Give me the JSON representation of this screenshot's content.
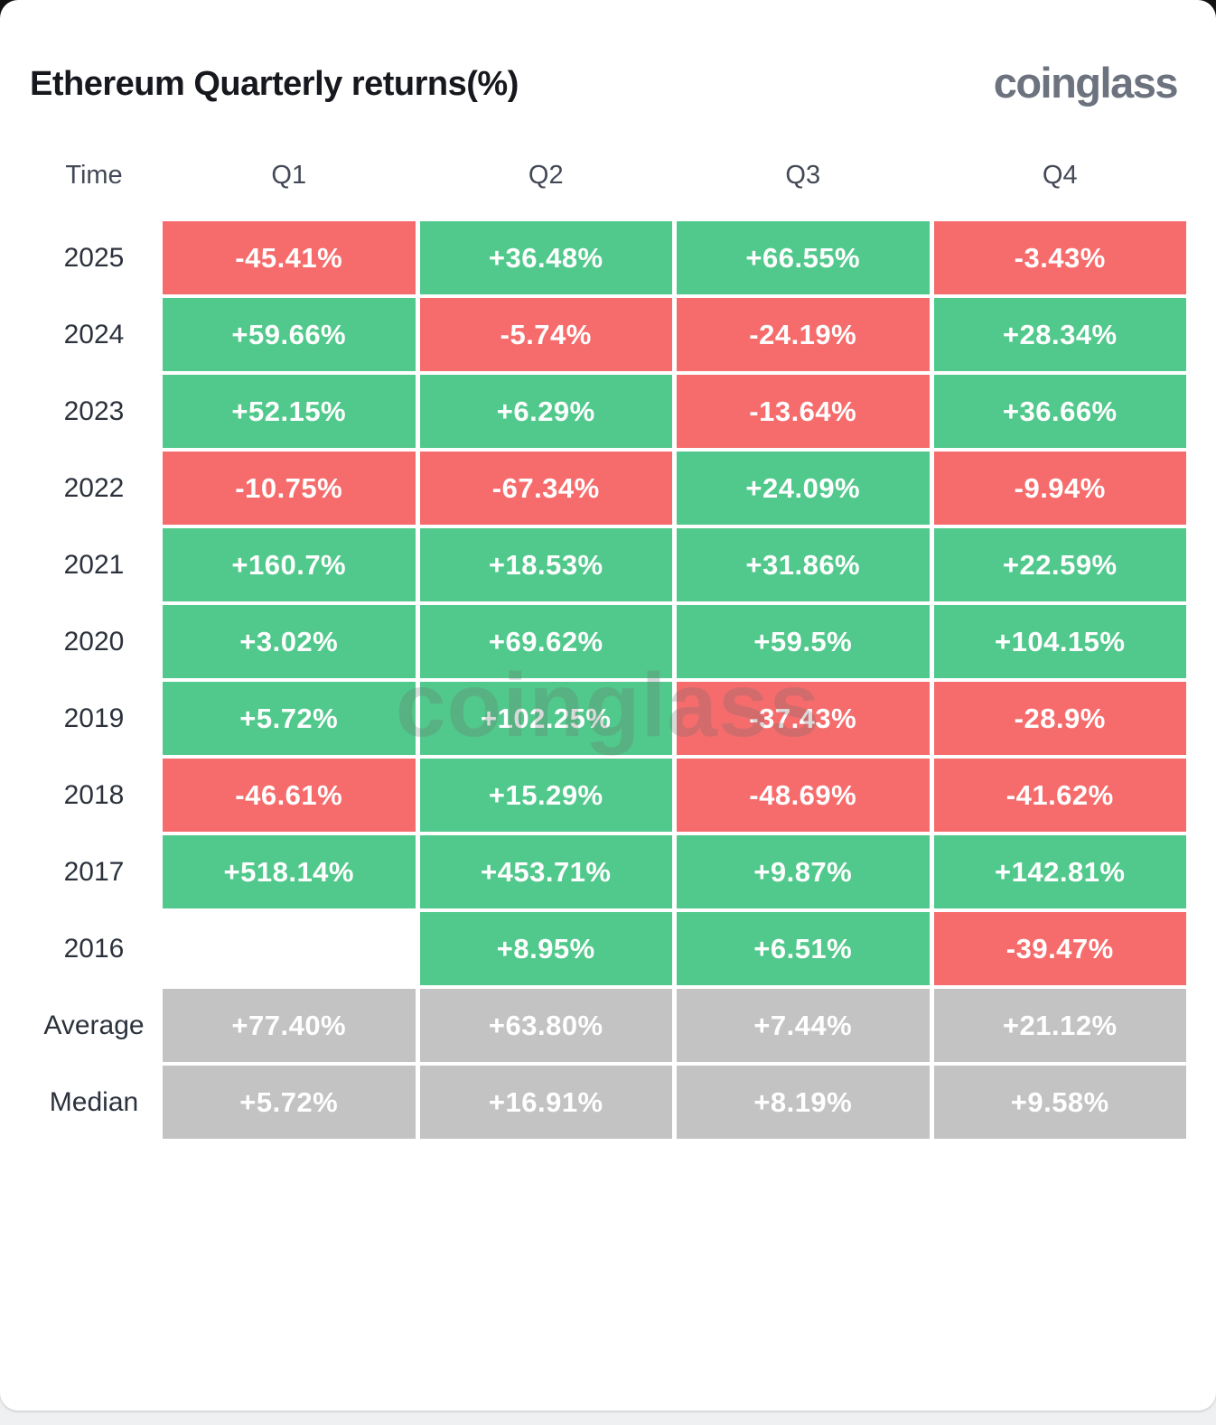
{
  "header": {
    "title": "Ethereum Quarterly returns(%)",
    "logo": "coinglass"
  },
  "watermark": "coinglass",
  "table": {
    "columns": [
      "Time",
      "Q1",
      "Q2",
      "Q3",
      "Q4"
    ],
    "colors": {
      "positive": "#52C98C",
      "negative": "#F66C6C",
      "summary": "#C3C3C3",
      "title_text": "#16181d",
      "header_text": "#434956",
      "year_text": "#2c323c",
      "logo_text": "#6c737e"
    },
    "rows": [
      {
        "label": "2025",
        "kind": "data",
        "cells": [
          "-45.41%",
          "+36.48%",
          "+66.55%",
          "-3.43%"
        ]
      },
      {
        "label": "2024",
        "kind": "data",
        "cells": [
          "+59.66%",
          "-5.74%",
          "-24.19%",
          "+28.34%"
        ]
      },
      {
        "label": "2023",
        "kind": "data",
        "cells": [
          "+52.15%",
          "+6.29%",
          "-13.64%",
          "+36.66%"
        ]
      },
      {
        "label": "2022",
        "kind": "data",
        "cells": [
          "-10.75%",
          "-67.34%",
          "+24.09%",
          "-9.94%"
        ]
      },
      {
        "label": "2021",
        "kind": "data",
        "cells": [
          "+160.7%",
          "+18.53%",
          "+31.86%",
          "+22.59%"
        ]
      },
      {
        "label": "2020",
        "kind": "data",
        "cells": [
          "+3.02%",
          "+69.62%",
          "+59.5%",
          "+104.15%"
        ]
      },
      {
        "label": "2019",
        "kind": "data",
        "cells": [
          "+5.72%",
          "+102.25%",
          "-37.43%",
          "-28.9%"
        ]
      },
      {
        "label": "2018",
        "kind": "data",
        "cells": [
          "-46.61%",
          "+15.29%",
          "-48.69%",
          "-41.62%"
        ]
      },
      {
        "label": "2017",
        "kind": "data",
        "cells": [
          "+518.14%",
          "+453.71%",
          "+9.87%",
          "+142.81%"
        ]
      },
      {
        "label": "2016",
        "kind": "data",
        "cells": [
          null,
          "+8.95%",
          "+6.51%",
          "-39.47%"
        ]
      },
      {
        "label": "Average",
        "kind": "summary",
        "cells": [
          "+77.40%",
          "+63.80%",
          "+7.44%",
          "+21.12%"
        ]
      },
      {
        "label": "Median",
        "kind": "summary",
        "cells": [
          "+5.72%",
          "+16.91%",
          "+8.19%",
          "+9.58%"
        ]
      }
    ]
  },
  "chart_data": {
    "type": "heatmap",
    "title": "Ethereum Quarterly returns(%)",
    "x_categories": [
      "Q1",
      "Q2",
      "Q3",
      "Q4"
    ],
    "y_categories": [
      "2025",
      "2024",
      "2023",
      "2022",
      "2021",
      "2020",
      "2019",
      "2018",
      "2017",
      "2016",
      "Average",
      "Median"
    ],
    "values": [
      [
        -45.41,
        36.48,
        66.55,
        -3.43
      ],
      [
        59.66,
        -5.74,
        -24.19,
        28.34
      ],
      [
        52.15,
        6.29,
        -13.64,
        36.66
      ],
      [
        -10.75,
        -67.34,
        24.09,
        -9.94
      ],
      [
        160.7,
        18.53,
        31.86,
        22.59
      ],
      [
        3.02,
        69.62,
        59.5,
        104.15
      ],
      [
        5.72,
        102.25,
        -37.43,
        -28.9
      ],
      [
        -46.61,
        15.29,
        -48.69,
        -41.62
      ],
      [
        518.14,
        453.71,
        9.87,
        142.81
      ],
      [
        null,
        8.95,
        6.51,
        -39.47
      ],
      [
        77.4,
        63.8,
        7.44,
        21.12
      ],
      [
        5.72,
        16.91,
        8.19,
        9.58
      ]
    ],
    "color_rule": "positive=green #52C98C, negative=red #F66C6C, Average/Median rows=gray #C3C3C3, null=blank",
    "legend": "none",
    "grid": "off"
  }
}
